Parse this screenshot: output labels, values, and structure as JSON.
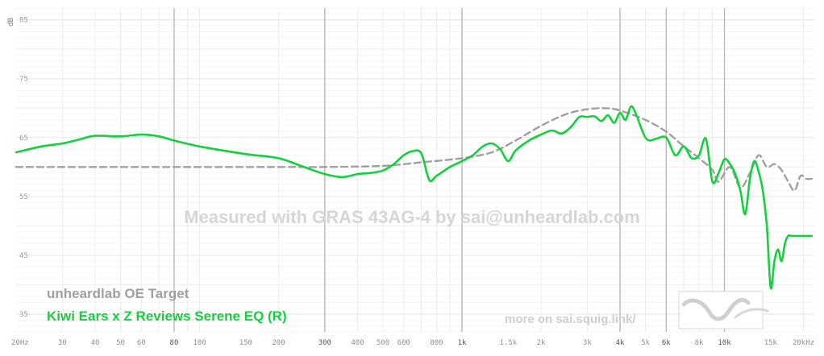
{
  "chart_data": {
    "type": "line",
    "ylabel": "dB",
    "x_scale": "log",
    "xlim": [
      20,
      22000
    ],
    "ylim": [
      32,
      87
    ],
    "y_ticks": [
      35,
      45,
      55,
      65,
      75,
      85
    ],
    "x_ticks": [
      {
        "v": 20,
        "label": "20Hz",
        "major": false
      },
      {
        "v": 30,
        "label": "30",
        "major": false
      },
      {
        "v": 40,
        "label": "40",
        "major": false
      },
      {
        "v": 50,
        "label": "50",
        "major": false
      },
      {
        "v": 60,
        "label": "60",
        "major": false
      },
      {
        "v": 80,
        "label": "80",
        "major": true
      },
      {
        "v": 100,
        "label": "100",
        "major": false
      },
      {
        "v": 150,
        "label": "150",
        "major": false
      },
      {
        "v": 200,
        "label": "200",
        "major": false
      },
      {
        "v": 300,
        "label": "300",
        "major": true
      },
      {
        "v": 400,
        "label": "400",
        "major": false
      },
      {
        "v": 500,
        "label": "500",
        "major": false
      },
      {
        "v": 600,
        "label": "600",
        "major": false
      },
      {
        "v": 800,
        "label": "800",
        "major": false
      },
      {
        "v": 1000,
        "label": "1k",
        "major": true
      },
      {
        "v": 1500,
        "label": "1.5k",
        "major": false
      },
      {
        "v": 2000,
        "label": "2k",
        "major": false
      },
      {
        "v": 3000,
        "label": "3k",
        "major": false
      },
      {
        "v": 4000,
        "label": "4k",
        "major": true
      },
      {
        "v": 5000,
        "label": "5k",
        "major": false
      },
      {
        "v": 6000,
        "label": "6k",
        "major": true
      },
      {
        "v": 8000,
        "label": "8k",
        "major": false
      },
      {
        "v": 10000,
        "label": "10k",
        "major": true
      },
      {
        "v": 15000,
        "label": "15k",
        "major": false
      },
      {
        "v": 20000,
        "label": "20kHz",
        "major": false
      }
    ],
    "series": [
      {
        "name": "unheardlab OE Target",
        "color": "#a39ea3",
        "dashed": true,
        "x": [
          20,
          100,
          200,
          300,
          500,
          700,
          1000,
          1300,
          1600,
          2000,
          2500,
          3000,
          3500,
          4000,
          5000,
          6000,
          7000,
          8000,
          9000,
          9500,
          10500,
          11500,
          12500,
          13500,
          14500,
          15500,
          16500,
          17500,
          18500,
          19500,
          20500,
          21500
        ],
        "y": [
          60,
          60,
          60,
          60,
          60.2,
          60.8,
          61.5,
          62.5,
          64.5,
          67,
          69,
          69.8,
          70,
          69.6,
          68,
          66,
          63.5,
          61.5,
          59.5,
          57.5,
          60,
          56.5,
          59,
          62,
          60,
          60.5,
          59.5,
          57.5,
          56,
          58.5,
          58,
          58
        ]
      },
      {
        "name": "Kiwi Ears x Z Reviews Serene EQ (R)",
        "color": "#13d13d",
        "dashed": false,
        "x": [
          20,
          25,
          30,
          35,
          40,
          50,
          60,
          70,
          80,
          100,
          150,
          200,
          250,
          300,
          350,
          400,
          450,
          500,
          550,
          600,
          650,
          700,
          750,
          800,
          900,
          1000,
          1100,
          1200,
          1300,
          1400,
          1500,
          1600,
          1800,
          2000,
          2200,
          2400,
          2600,
          2800,
          3000,
          3200,
          3400,
          3600,
          3800,
          4000,
          4200,
          4400,
          4600,
          4800,
          5000,
          5200,
          5500,
          6000,
          6500,
          7000,
          7500,
          8000,
          8500,
          9000,
          9500,
          10000,
          10500,
          11000,
          11500,
          12000,
          12500,
          13000,
          13500,
          14000,
          14500,
          15000,
          15500,
          16000,
          16500,
          17000,
          17500,
          18000,
          18500,
          19000,
          19500,
          20000,
          20500,
          21000,
          21500
        ],
        "y": [
          62.5,
          63.5,
          64,
          64.7,
          65.3,
          65.2,
          65.5,
          65.2,
          64.5,
          63.5,
          62.2,
          61.5,
          60,
          58.8,
          58.3,
          58.8,
          59,
          59.4,
          60.5,
          62,
          62.7,
          62.3,
          57.8,
          58.5,
          60,
          61,
          62,
          63.5,
          64,
          63,
          61,
          62.8,
          64.5,
          65.5,
          66.2,
          65.7,
          66.8,
          68.5,
          68.5,
          68.6,
          67.8,
          68.8,
          67.5,
          69.2,
          68,
          70.3,
          69,
          66.8,
          65,
          64.5,
          64.8,
          65,
          62,
          63.5,
          61.5,
          62,
          64.8,
          57.5,
          59,
          61.3,
          60.5,
          58.8,
          56,
          52,
          58,
          61,
          59.2,
          56,
          50,
          39.5,
          44,
          46,
          44,
          47,
          48.3,
          48.3,
          48.3,
          48.3,
          48.3,
          48.3,
          48.3,
          48.3,
          48.3
        ]
      }
    ],
    "annotation": "Measured with GRAS 43AG-4 by sai@unheardlab.com",
    "legend": {
      "placement": "bottom-left"
    },
    "footer_link": "more on sai.squig.link/"
  }
}
